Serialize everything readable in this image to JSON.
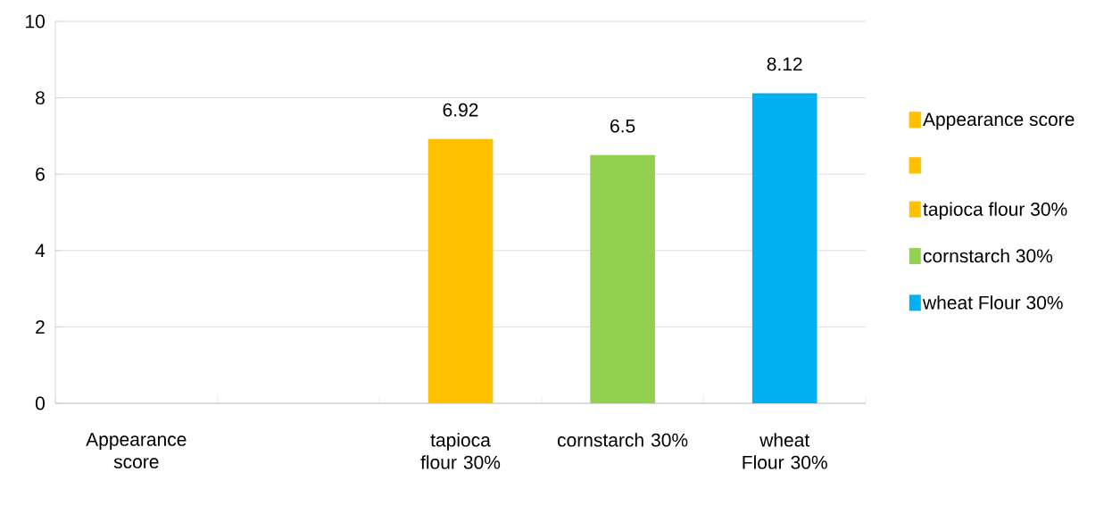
{
  "chart_data": {
    "type": "bar",
    "categories": [
      "Appearance score",
      null,
      "tapioca flour 30%",
      "cornstarch 30%",
      "wheat Flour 30%"
    ],
    "series": [
      {
        "name": "Appearance score",
        "color": "#ffc000",
        "values": [
          null,
          null,
          null,
          null,
          null
        ]
      },
      {
        "color": "#ffc000",
        "values": [
          null,
          null,
          null,
          null,
          null
        ]
      },
      {
        "name": "tapioca flour 30%",
        "color": "#ffc000",
        "values": [
          null,
          null,
          6.92,
          null,
          null
        ]
      },
      {
        "name": "cornstarch 30%",
        "color": "#92d050",
        "values": [
          null,
          null,
          null,
          6.5,
          null
        ]
      },
      {
        "name": "wheat Flour 30%",
        "color": "#00b0f0",
        "values": [
          null,
          null,
          null,
          null,
          8.12
        ]
      }
    ],
    "ylim": [
      0,
      10
    ],
    "yticks": [
      0,
      2,
      4,
      6,
      8,
      10
    ],
    "grid": "y",
    "legend": "right",
    "data_labels": true
  }
}
